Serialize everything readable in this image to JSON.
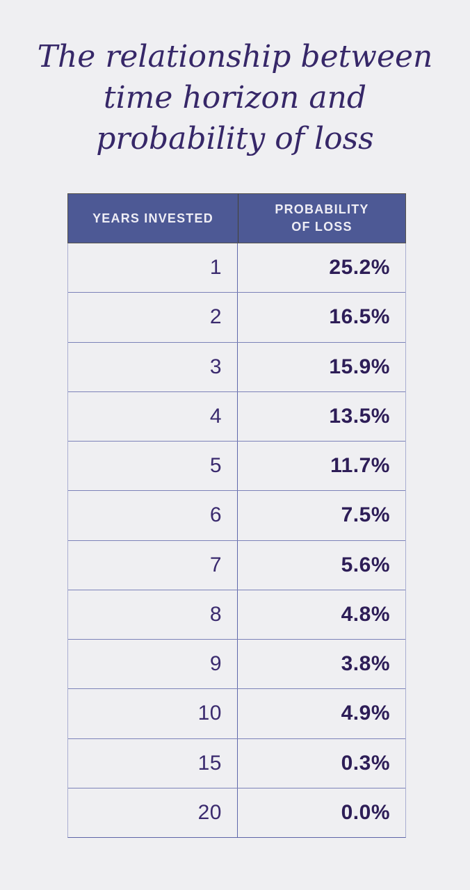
{
  "page": {
    "background_color": "#efeff2",
    "accent_color": "#4d5995",
    "title_color": "#362768",
    "value_color": "#2d1d57"
  },
  "title": {
    "lines": [
      "The relationship between",
      "time horizon and",
      "probability of loss"
    ]
  },
  "table": {
    "header": {
      "col1": "YEARS INVESTED",
      "col2_line1": "PROBABILITY",
      "col2_line2": "OF LOSS"
    },
    "rows": [
      {
        "years": "1",
        "loss": "25.2%"
      },
      {
        "years": "2",
        "loss": "16.5%"
      },
      {
        "years": "3",
        "loss": "15.9%"
      },
      {
        "years": "4",
        "loss": "13.5%"
      },
      {
        "years": "5",
        "loss": "11.7%"
      },
      {
        "years": "6",
        "loss": "7.5%"
      },
      {
        "years": "7",
        "loss": "5.6%"
      },
      {
        "years": "8",
        "loss": "4.8%"
      },
      {
        "years": "9",
        "loss": "3.8%"
      },
      {
        "years": "10",
        "loss": "4.9%"
      },
      {
        "years": "15",
        "loss": "0.3%"
      },
      {
        "years": "20",
        "loss": "0.0%"
      }
    ]
  },
  "chart_data": {
    "type": "table",
    "title": "The relationship between time horizon and probability of loss",
    "columns": [
      "Years invested",
      "Probability of loss"
    ],
    "x": [
      1,
      2,
      3,
      4,
      5,
      6,
      7,
      8,
      9,
      10,
      15,
      20
    ],
    "series": [
      {
        "name": "Probability of loss (%)",
        "values": [
          25.2,
          16.5,
          15.9,
          13.5,
          11.7,
          7.5,
          5.6,
          4.8,
          3.8,
          4.9,
          0.3,
          0.0
        ]
      }
    ],
    "legend_position": "none",
    "grid": "table-borders"
  }
}
